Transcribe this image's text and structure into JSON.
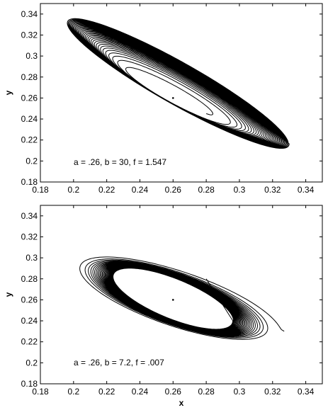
{
  "chart_data": [
    {
      "type": "line",
      "title": "",
      "xlabel": "",
      "ylabel": "y",
      "xlim": [
        0.18,
        0.35
      ],
      "ylim": [
        0.18,
        0.35
      ],
      "xticks": [
        "0.18",
        "0.2",
        "0.22",
        "0.24",
        "0.26",
        "0.28",
        "0.3",
        "0.32",
        "0.34"
      ],
      "yticks": [
        "0.18",
        "0.2",
        "0.22",
        "0.24",
        "0.26",
        "0.28",
        "0.3",
        "0.32",
        "0.34"
      ],
      "annotation": "a = .26, b = 30, f = 1.547",
      "fixed_point": [
        0.26,
        0.26
      ],
      "trajectory": {
        "start": [
          0.28,
          0.28
        ],
        "direction": "spirals inward toward a limit cycle",
        "outer_extent_x": [
          0.196,
          0.33
        ],
        "outer_extent_y": [
          0.212,
          0.336
        ],
        "limit_cycle_extent_x": [
          0.242,
          0.28
        ],
        "limit_cycle_extent_y": [
          0.244,
          0.276
        ]
      },
      "grid": false,
      "color": "#000000"
    },
    {
      "type": "line",
      "title": "",
      "xlabel": "x",
      "ylabel": "y",
      "xlim": [
        0.18,
        0.35
      ],
      "ylim": [
        0.18,
        0.35
      ],
      "xticks": [
        "0.18",
        "0.2",
        "0.22",
        "0.24",
        "0.26",
        "0.28",
        "0.3",
        "0.32",
        "0.34"
      ],
      "yticks": [
        "0.18",
        "0.2",
        "0.22",
        "0.24",
        "0.26",
        "0.28",
        "0.3",
        "0.32",
        "0.34"
      ],
      "annotation": "a = .26, b = 7.2, f = .007",
      "fixed_point": [
        0.26,
        0.26
      ],
      "trajectory": {
        "start": [
          0.28,
          0.28
        ],
        "direction": "spirals outward toward a limit cycle",
        "outer_extent_x": [
          0.197,
          0.327
        ],
        "outer_extent_y": [
          0.218,
          0.304
        ],
        "limit_cycle_extent_x": [
          0.224,
          0.296
        ],
        "limit_cycle_extent_y": [
          0.232,
          0.29
        ]
      },
      "grid": false,
      "color": "#000000"
    }
  ]
}
